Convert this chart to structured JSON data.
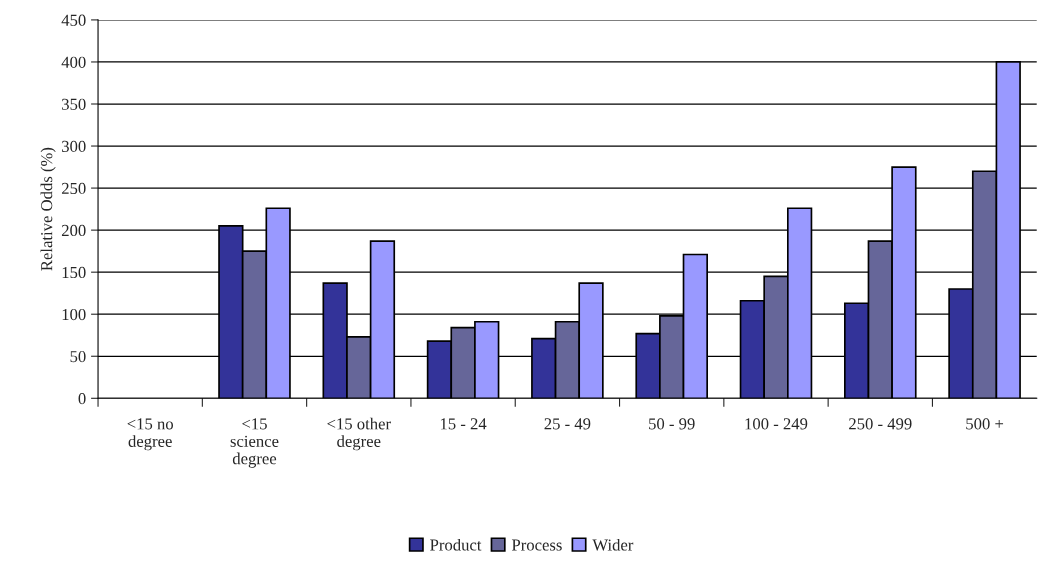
{
  "chart_data": {
    "type": "bar",
    "ylabel": "Relative Odds (%)",
    "categories": [
      "<15 no\ndegree",
      "<15\nscience\ndegree",
      "<15 other\ndegree",
      "15 - 24",
      "25 - 49",
      "50 - 99",
      "100 - 249",
      "250 - 499",
      "500 +"
    ],
    "series": [
      {
        "name": "Product",
        "color": "#333399",
        "values": [
          null,
          205,
          137,
          68,
          71,
          77,
          116,
          113,
          130
        ]
      },
      {
        "name": "Process",
        "color": "#666699",
        "values": [
          null,
          175,
          73,
          84,
          91,
          98,
          145,
          187,
          270
        ]
      },
      {
        "name": "Wider",
        "color": "#9999ff",
        "values": [
          null,
          226,
          187,
          91,
          137,
          171,
          226,
          275,
          400
        ]
      }
    ],
    "ylim": [
      0,
      450
    ],
    "yticks": [
      0,
      50,
      100,
      150,
      200,
      250,
      300,
      350,
      400,
      450
    ],
    "grid": "y",
    "legend": "bottom"
  }
}
